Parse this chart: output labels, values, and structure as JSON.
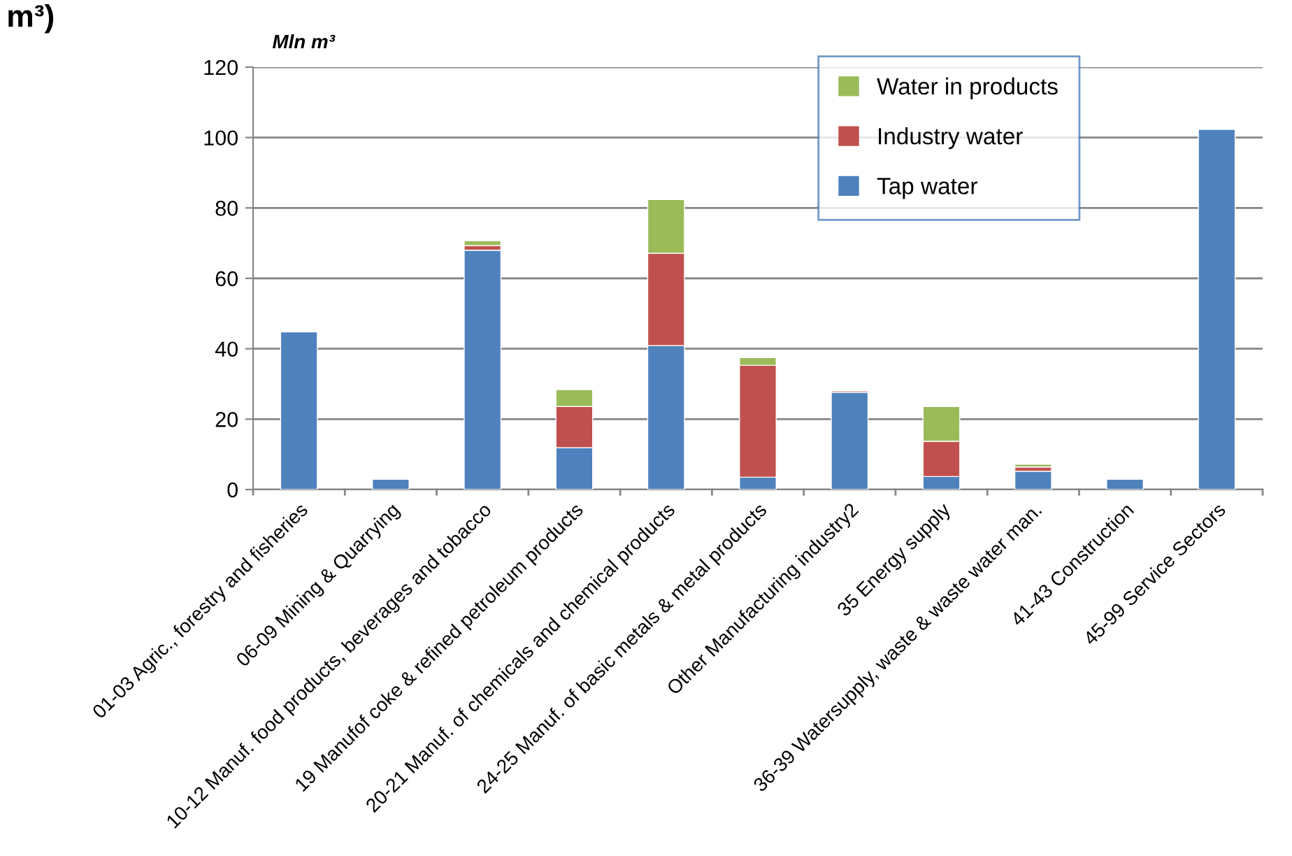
{
  "chart_data": {
    "type": "bar",
    "title": "m³)",
    "ylabel": "Mln m³",
    "stacked": true,
    "categories": [
      "01-03 Agric., forestry and fisheries",
      "06-09 Mining & Quarrying",
      "10-12 Manuf. food products, beverages and tobacco",
      "19 Manufof coke & refined petroleum products",
      "20-21 Manuf. of chemicals and chemical products",
      "24-25 Manuf. of basic metals & metal products",
      "Other Manufacturing industry2",
      "35 Energy supply",
      "36-39 Watersupply, waste & waste water man.",
      "41-43 Construction",
      "45-99 Service Sectors"
    ],
    "series": [
      {
        "name": "Tap water",
        "color": "#4f81bd",
        "values": [
          44.8,
          2.9,
          68,
          11.9,
          40.9,
          3.5,
          27.6,
          3.7,
          5.2,
          2.9,
          102.3
        ]
      },
      {
        "name": "Industry water",
        "color": "#c0504d",
        "values": [
          null,
          null,
          1.3,
          11.7,
          26.2,
          31.8,
          0.4,
          10,
          1.2,
          null,
          null
        ]
      },
      {
        "name": "Water in products",
        "color": "#9bbb59",
        "values": [
          null,
          null,
          1.4,
          4.8,
          15.3,
          2.2,
          null,
          9.9,
          0.8,
          null,
          null
        ]
      }
    ],
    "ylim": [
      0,
      120
    ],
    "yticks": [
      0,
      20,
      40,
      60,
      80,
      100,
      120
    ],
    "grid": "y",
    "legend": "top right"
  }
}
